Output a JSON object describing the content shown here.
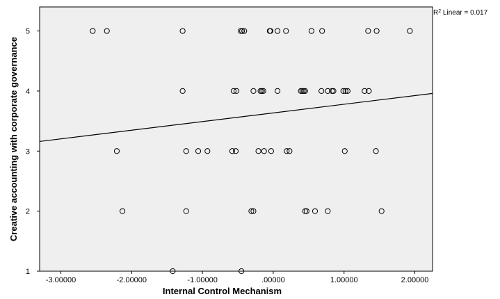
{
  "chart_data": {
    "type": "scatter",
    "title": "",
    "xlabel": "Internal Control Mechanism",
    "ylabel": "Creative accounting with corporate governance",
    "xlim": [
      -3.3,
      2.25
    ],
    "ylim": [
      1,
      5.4
    ],
    "x_ticks": [
      "-3.00000",
      "-2.00000",
      "-1.00000",
      ".00000",
      "1.00000",
      "2.00000"
    ],
    "x_tick_values": [
      -3,
      -2,
      -1,
      0,
      1,
      2
    ],
    "y_ticks": [
      "1",
      "2",
      "3",
      "4",
      "5"
    ],
    "y_tick_values": [
      1,
      2,
      3,
      4,
      5
    ],
    "grid": false,
    "plot_background": "#efefef",
    "marker_color": "#000000",
    "fit_line": {
      "type": "linear",
      "x": [
        -3.3,
        2.25
      ],
      "y": [
        3.16,
        3.96
      ],
      "label_prefix": "R",
      "label_sup": "2",
      "label_suffix": " Linear = 0.017"
    },
    "points": [
      {
        "x": -2.55,
        "y": 5
      },
      {
        "x": -2.35,
        "y": 5
      },
      {
        "x": -1.28,
        "y": 5
      },
      {
        "x": -0.46,
        "y": 5
      },
      {
        "x": -0.44,
        "y": 5
      },
      {
        "x": -0.41,
        "y": 5
      },
      {
        "x": -0.05,
        "y": 5
      },
      {
        "x": -0.04,
        "y": 5
      },
      {
        "x": 0.06,
        "y": 5
      },
      {
        "x": 0.18,
        "y": 5
      },
      {
        "x": 0.54,
        "y": 5
      },
      {
        "x": 0.69,
        "y": 5
      },
      {
        "x": 1.34,
        "y": 5
      },
      {
        "x": 1.46,
        "y": 5
      },
      {
        "x": 1.93,
        "y": 5
      },
      {
        "x": -1.28,
        "y": 4
      },
      {
        "x": -0.56,
        "y": 4
      },
      {
        "x": -0.52,
        "y": 4
      },
      {
        "x": -0.28,
        "y": 4
      },
      {
        "x": -0.18,
        "y": 4
      },
      {
        "x": -0.16,
        "y": 4
      },
      {
        "x": -0.14,
        "y": 4
      },
      {
        "x": 0.06,
        "y": 4
      },
      {
        "x": 0.39,
        "y": 4
      },
      {
        "x": 0.41,
        "y": 4
      },
      {
        "x": 0.43,
        "y": 4
      },
      {
        "x": 0.45,
        "y": 4
      },
      {
        "x": 0.68,
        "y": 4
      },
      {
        "x": 0.77,
        "y": 4
      },
      {
        "x": 0.83,
        "y": 4
      },
      {
        "x": 0.85,
        "y": 4
      },
      {
        "x": 0.99,
        "y": 4
      },
      {
        "x": 1.02,
        "y": 4
      },
      {
        "x": 1.05,
        "y": 4
      },
      {
        "x": 1.29,
        "y": 4
      },
      {
        "x": 1.35,
        "y": 4
      },
      {
        "x": -2.21,
        "y": 3
      },
      {
        "x": -1.23,
        "y": 3
      },
      {
        "x": -1.06,
        "y": 3
      },
      {
        "x": -0.93,
        "y": 3
      },
      {
        "x": -0.58,
        "y": 3
      },
      {
        "x": -0.53,
        "y": 3
      },
      {
        "x": -0.21,
        "y": 3
      },
      {
        "x": -0.13,
        "y": 3
      },
      {
        "x": -0.03,
        "y": 3
      },
      {
        "x": 0.19,
        "y": 3
      },
      {
        "x": 0.23,
        "y": 3
      },
      {
        "x": 1.01,
        "y": 3
      },
      {
        "x": 1.45,
        "y": 3
      },
      {
        "x": -2.13,
        "y": 2
      },
      {
        "x": -1.23,
        "y": 2
      },
      {
        "x": -0.31,
        "y": 2
      },
      {
        "x": -0.28,
        "y": 2
      },
      {
        "x": 0.45,
        "y": 2
      },
      {
        "x": 0.47,
        "y": 2
      },
      {
        "x": 0.59,
        "y": 2
      },
      {
        "x": 0.77,
        "y": 2
      },
      {
        "x": 1.53,
        "y": 2
      },
      {
        "x": -1.42,
        "y": 1
      },
      {
        "x": -0.45,
        "y": 1
      }
    ]
  }
}
